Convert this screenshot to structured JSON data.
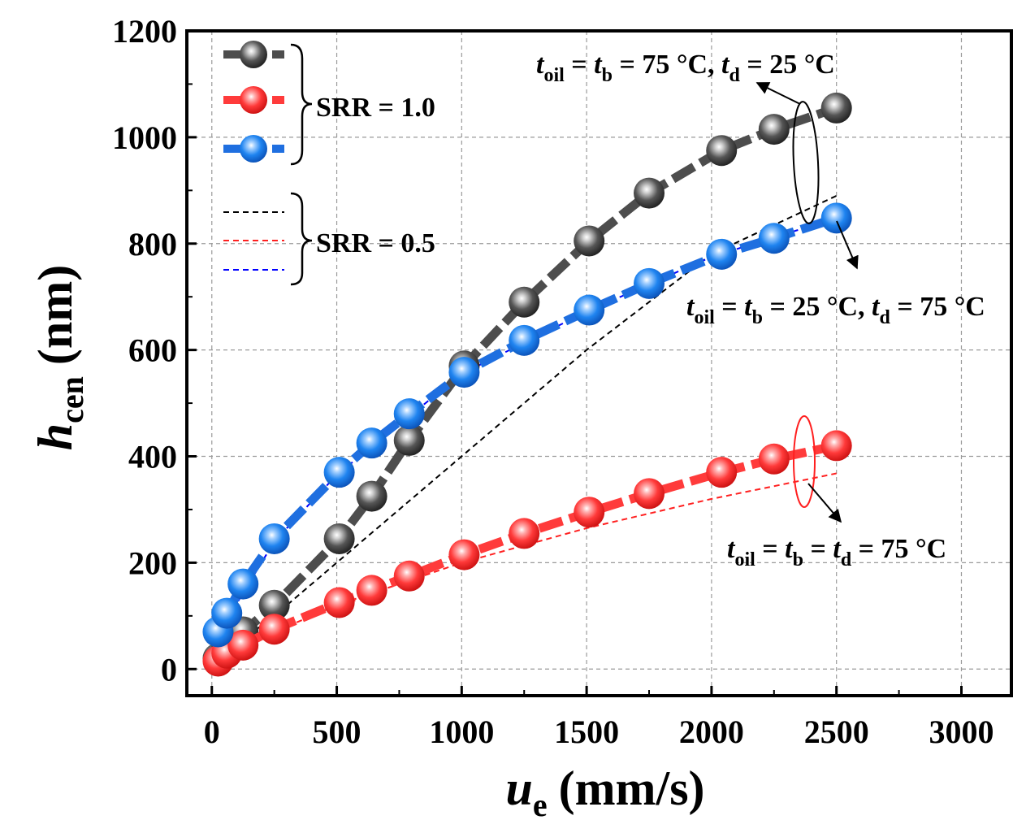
{
  "chart_data": {
    "type": "line",
    "xlabel": "u",
    "xlabel_sub": "e",
    "xlabel_unit": "(mm/s)",
    "ylabel": "h",
    "ylabel_sub": "cen",
    "ylabel_unit": "(nm)",
    "xlim": [
      -100,
      3200
    ],
    "ylim": [
      -50,
      1200
    ],
    "xticks": [
      0,
      500,
      1000,
      1500,
      2000,
      2500,
      3000
    ],
    "xtick_labels": [
      "0",
      "500",
      "1000",
      "1500",
      "2000",
      "2500",
      "3000"
    ],
    "yticks": [
      0,
      200,
      400,
      600,
      800,
      1000,
      1200
    ],
    "ytick_labels": [
      "0",
      "200",
      "400",
      "600",
      "800",
      "1000",
      "1200"
    ],
    "grid": true,
    "series": [
      {
        "name": "SRR = 1.0 (tb = 75 °C, td = 25 °C)",
        "style": "marker",
        "color": "#4d4d4d",
        "x": [
          25,
          60,
          125,
          250,
          510,
          640,
          790,
          1010,
          1250,
          1510,
          1750,
          2040,
          2250,
          2500
        ],
        "y": [
          20,
          45,
          70,
          120,
          245,
          325,
          430,
          570,
          690,
          805,
          895,
          975,
          1015,
          1055
        ]
      },
      {
        "name": "SRR = 1.0 (tb = td = 75 °C)",
        "style": "marker",
        "color": "#ff3b3b",
        "x": [
          25,
          60,
          125,
          250,
          510,
          640,
          790,
          1010,
          1250,
          1510,
          1750,
          2040,
          2250,
          2500
        ],
        "y": [
          15,
          30,
          45,
          75,
          125,
          148,
          175,
          215,
          255,
          295,
          330,
          370,
          395,
          420
        ]
      },
      {
        "name": "SRR = 1.0 (tb = 25 °C, td = 75 °C)",
        "style": "marker",
        "color": "#1f6fe0",
        "x": [
          25,
          60,
          125,
          250,
          510,
          640,
          790,
          1010,
          1250,
          1510,
          1750,
          2040,
          2250,
          2500
        ],
        "y": [
          70,
          105,
          160,
          245,
          370,
          425,
          480,
          558,
          618,
          675,
          725,
          780,
          810,
          848
        ]
      },
      {
        "name": "SRR = 0.5 (tb = 75 °C, td = 25 °C)",
        "style": "dashed",
        "color": "#000000",
        "x": [
          25,
          250,
          500,
          1000,
          1500,
          2000,
          2500
        ],
        "y": [
          20,
          100,
          200,
          400,
          600,
          780,
          890
        ]
      },
      {
        "name": "SRR = 0.5 (tb = td = 75 °C)",
        "style": "dashed",
        "color": "#ff2020",
        "x": [
          25,
          250,
          500,
          1000,
          1500,
          2000,
          2500
        ],
        "y": [
          15,
          70,
          120,
          200,
          265,
          320,
          368
        ]
      },
      {
        "name": "SRR = 0.5 (tb = 25 °C, td = 75 °C)",
        "style": "dashed",
        "color": "#0000ff",
        "x": [
          25,
          250,
          500,
          1000,
          1500,
          2000,
          2500
        ],
        "y": [
          65,
          240,
          365,
          555,
          672,
          775,
          848
        ]
      }
    ],
    "legend": {
      "position": "top-left",
      "group1_label": "SRR = 1.0",
      "group2_label": "SRR = 0.5"
    },
    "annotations": [
      {
        "id": "ann1",
        "parts": [
          {
            "t": "t",
            "style": "italic"
          },
          {
            "t": "oil",
            "style": "sub"
          },
          {
            "t": " = ",
            "style": "normal"
          },
          {
            "t": "t",
            "style": "italic"
          },
          {
            "t": "b",
            "style": "sub"
          },
          {
            "t": " = 75 °C, ",
            "style": "normal"
          },
          {
            "t": "t",
            "style": "italic"
          },
          {
            "t": "d",
            "style": "sub"
          },
          {
            "t": " = 25 °C",
            "style": "normal"
          }
        ]
      },
      {
        "id": "ann2",
        "parts": [
          {
            "t": "t",
            "style": "italic"
          },
          {
            "t": "oil",
            "style": "sub"
          },
          {
            "t": " = ",
            "style": "normal"
          },
          {
            "t": "t",
            "style": "italic"
          },
          {
            "t": "b",
            "style": "sub"
          },
          {
            "t": " = 25 °C, ",
            "style": "normal"
          },
          {
            "t": "t",
            "style": "italic"
          },
          {
            "t": "d",
            "style": "sub"
          },
          {
            "t": " = 75 °C",
            "style": "normal"
          }
        ]
      },
      {
        "id": "ann3",
        "parts": [
          {
            "t": "t",
            "style": "italic"
          },
          {
            "t": "oil",
            "style": "sub"
          },
          {
            "t": " = ",
            "style": "normal"
          },
          {
            "t": "t",
            "style": "italic"
          },
          {
            "t": "b",
            "style": "sub"
          },
          {
            "t": " = ",
            "style": "normal"
          },
          {
            "t": "t",
            "style": "italic"
          },
          {
            "t": "d",
            "style": "sub"
          },
          {
            "t": " = 75 °C",
            "style": "normal"
          }
        ]
      }
    ]
  }
}
